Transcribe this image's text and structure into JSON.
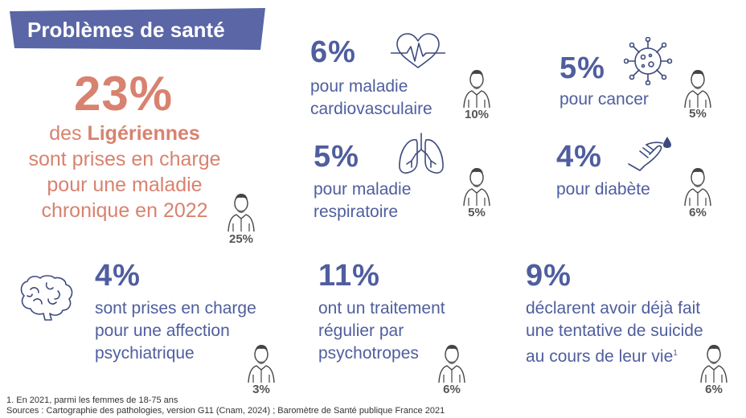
{
  "title": "Problèmes de santé",
  "main": {
    "pct": "23%",
    "line1_pre": "des ",
    "line1_bold": "Ligériennes",
    "line2": "sont prises en charge",
    "line3": "pour une maladie",
    "line4": "chronique en 2022",
    "men_pct": "25%"
  },
  "stats": {
    "cardio": {
      "pct": "6%",
      "line1": "pour maladie",
      "line2": "cardiovasculaire",
      "men_pct": "10%",
      "icon": "heart-pulse-icon"
    },
    "cancer": {
      "pct": "5%",
      "line1": "pour cancer",
      "men_pct": "5%",
      "icon": "virus-cell-icon"
    },
    "resp": {
      "pct": "5%",
      "line1": "pour maladie",
      "line2": "respiratoire",
      "men_pct": "5%",
      "icon": "lungs-icon"
    },
    "diabete": {
      "pct": "4%",
      "line1": "pour diabète",
      "men_pct": "6%",
      "icon": "finger-drop-icon"
    },
    "psy": {
      "pct": "4%",
      "line1": "sont prises en charge",
      "line2": "pour une affection",
      "line3": "psychiatrique",
      "men_pct": "3%",
      "icon": "brain-icon"
    },
    "psycho": {
      "pct": "11%",
      "line1": "ont un traitement",
      "line2": "régulier par",
      "line3": "psychotropes",
      "men_pct": "6%"
    },
    "suicide": {
      "pct": "9%",
      "line1": "déclarent avoir déjà fait",
      "line2": "une tentative de suicide",
      "line3": "au cours de leur vie",
      "sup": "1",
      "men_pct": "6%"
    }
  },
  "footnote": "1. En 2021, parmi les femmes de 18-75 ans",
  "sources": "Sources : Cartographie des pathologies, version G11 (Cnam, 2024) ; Baromètre de Santé publique France 2021",
  "colors": {
    "title_bg": "#5a66a6",
    "salmon": "#d8826f",
    "blue": "#4f5e9e",
    "grey_text": "#555555"
  }
}
